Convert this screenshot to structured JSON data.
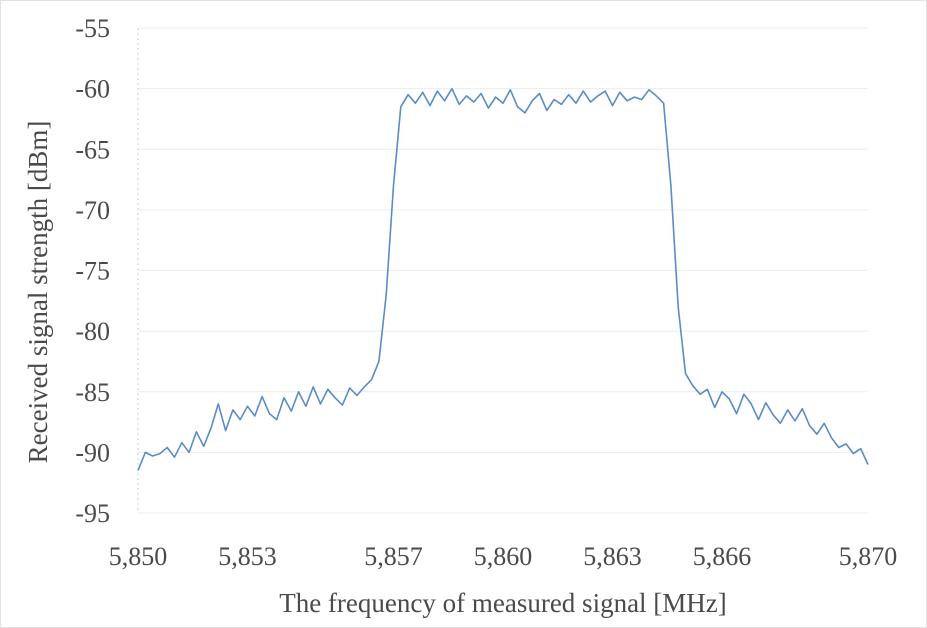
{
  "chart_data": {
    "type": "line",
    "title": "",
    "xlabel": "The frequency of measured signal [MHz]",
    "ylabel": "Received signal strength [dBm]",
    "xlim": [
      5850,
      5870
    ],
    "ylim": [
      -95,
      -55
    ],
    "x_ticks": [
      5850,
      5853,
      5857,
      5860,
      5863,
      5866,
      5870
    ],
    "x_tick_labels": [
      "5,850",
      "5,853",
      "5,857",
      "5,860",
      "5,863",
      "5,866",
      "5,870"
    ],
    "y_ticks": [
      -55,
      -60,
      -65,
      -70,
      -75,
      -80,
      -85,
      -90,
      -95
    ],
    "y_tick_labels": [
      "-55",
      "-60",
      "-65",
      "-70",
      "-75",
      "-80",
      "-85",
      "-90",
      "-95"
    ],
    "grid": "horizontal",
    "legend": "none",
    "series": [
      {
        "color": "#5b8cc6",
        "x": [
          5850.0,
          5850.2,
          5850.4,
          5850.6,
          5850.8,
          5851.0,
          5851.2,
          5851.4,
          5851.6,
          5851.8,
          5852.0,
          5852.2,
          5852.4,
          5852.6,
          5852.8,
          5853.0,
          5853.2,
          5853.4,
          5853.6,
          5853.8,
          5854.0,
          5854.2,
          5854.4,
          5854.6,
          5854.8,
          5855.0,
          5855.2,
          5855.4,
          5855.6,
          5855.8,
          5856.0,
          5856.2,
          5856.4,
          5856.6,
          5856.8,
          5857.0,
          5857.2,
          5857.4,
          5857.6,
          5857.8,
          5858.0,
          5858.2,
          5858.4,
          5858.6,
          5858.8,
          5859.0,
          5859.2,
          5859.4,
          5859.6,
          5859.8,
          5860.0,
          5860.2,
          5860.4,
          5860.6,
          5860.8,
          5861.0,
          5861.2,
          5861.4,
          5861.6,
          5861.8,
          5862.0,
          5862.2,
          5862.4,
          5862.6,
          5862.8,
          5863.0,
          5863.2,
          5863.4,
          5863.6,
          5863.8,
          5864.0,
          5864.2,
          5864.4,
          5864.6,
          5864.8,
          5865.0,
          5865.2,
          5865.4,
          5865.6,
          5865.8,
          5866.0,
          5866.2,
          5866.4,
          5866.6,
          5866.8,
          5867.0,
          5867.2,
          5867.4,
          5867.6,
          5867.8,
          5868.0,
          5868.2,
          5868.4,
          5868.6,
          5868.8,
          5869.0,
          5869.2,
          5869.4,
          5869.6,
          5869.8,
          5870.0
        ],
        "y": [
          -91.5,
          -90.0,
          -90.3,
          -90.1,
          -89.6,
          -90.4,
          -89.2,
          -90.0,
          -88.3,
          -89.5,
          -88.0,
          -86.0,
          -88.2,
          -86.5,
          -87.3,
          -86.2,
          -87.0,
          -85.4,
          -86.8,
          -87.3,
          -85.5,
          -86.6,
          -85.0,
          -86.2,
          -84.6,
          -86.0,
          -84.8,
          -85.5,
          -86.1,
          -84.7,
          -85.3,
          -84.6,
          -84.0,
          -82.5,
          -77.0,
          -68.0,
          -61.5,
          -60.5,
          -61.2,
          -60.3,
          -61.4,
          -60.2,
          -61.0,
          -60.0,
          -61.3,
          -60.6,
          -61.1,
          -60.4,
          -61.6,
          -60.7,
          -61.2,
          -60.1,
          -61.5,
          -62.0,
          -61.0,
          -60.4,
          -61.8,
          -60.9,
          -61.3,
          -60.5,
          -61.2,
          -60.2,
          -61.1,
          -60.6,
          -60.2,
          -61.4,
          -60.3,
          -61.0,
          -60.7,
          -60.9,
          -60.1,
          -60.6,
          -61.2,
          -68.0,
          -78.0,
          -83.5,
          -84.5,
          -85.2,
          -84.8,
          -86.3,
          -85.0,
          -85.6,
          -86.8,
          -85.2,
          -86.0,
          -87.3,
          -85.9,
          -86.9,
          -87.6,
          -86.5,
          -87.4,
          -86.4,
          -87.8,
          -88.5,
          -87.6,
          -88.8,
          -89.6,
          -89.3,
          -90.1,
          -89.7,
          -91.0
        ]
      }
    ]
  }
}
